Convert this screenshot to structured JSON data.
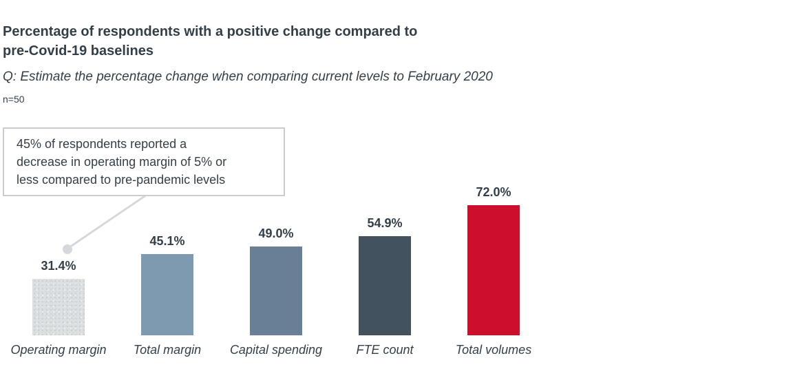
{
  "header": {
    "title_line1": "Percentage of respondents with a positive change compared to",
    "title_line2": "pre-Covid-19 baselines",
    "subtitle": "Q: Estimate the percentage change when comparing current levels to February 2020",
    "sample_size": "n=50"
  },
  "callout": {
    "line1": "45% of respondents reported a",
    "line2": "decrease in operating margin of 5% or",
    "line3": "less compared to pre-pandemic levels",
    "full_text": "45% of respondents reported a decrease in operating margin of 5% or less compared to pre-pandemic levels"
  },
  "chart_data": {
    "type": "bar",
    "title": "Percentage of respondents with a positive change compared to pre-Covid-19 baselines",
    "subtitle": "Q: Estimate the percentage change when comparing current levels to February 2020",
    "sample_size": "n=50",
    "categories": [
      "Operating margin",
      "Total margin",
      "Capital spending",
      "FTE count",
      "Total volumes"
    ],
    "values": [
      31.4,
      45.1,
      49.0,
      54.9,
      72.0
    ],
    "value_labels": [
      "31.4%",
      "45.1%",
      "49.0%",
      "54.9%",
      "72.0%"
    ],
    "unit": "%",
    "bar_colors": [
      "#dde0e2",
      "#7e9ab0",
      "#687f95",
      "#43525f",
      "#ce0e2d"
    ],
    "bar_styles": [
      "speckled",
      "solid",
      "solid",
      "solid",
      "solid"
    ],
    "ylim": [
      0,
      80
    ],
    "grid": false,
    "legend": "none",
    "value_axis_visible": false,
    "annotation": {
      "text": "45% of respondents reported a decrease in operating margin of 5% or less compared to pre-pandemic levels",
      "points_to": "Operating margin"
    }
  },
  "colors": {
    "text": "#333f48",
    "callout_border": "#c9cdd0",
    "connector": "#d6d9db",
    "background": "#ffffff",
    "accent_red": "#ce0e2d"
  }
}
